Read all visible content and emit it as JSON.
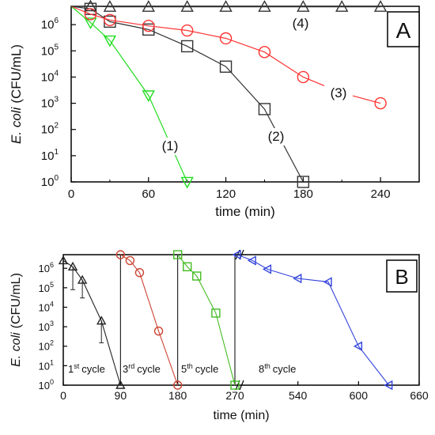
{
  "chart_data": [
    {
      "panel": "A",
      "type": "line",
      "ylabel_italic": "E. coli",
      "ylabel_unit": "(CFU/mL)",
      "xlabel": "time (min)",
      "xlim": [
        0,
        270
      ],
      "ylim": [
        1,
        5000000
      ],
      "yscale": "log",
      "xticks": [
        0,
        60,
        120,
        180,
        240
      ],
      "yticks": [
        {
          "value": 1,
          "base": "10",
          "exp": "0"
        },
        {
          "value": 10,
          "base": "10",
          "exp": "1"
        },
        {
          "value": 100,
          "base": "10",
          "exp": "2"
        },
        {
          "value": 1000,
          "base": "10",
          "exp": "3"
        },
        {
          "value": 10000,
          "base": "10",
          "exp": "4"
        },
        {
          "value": 100000,
          "base": "10",
          "exp": "5"
        },
        {
          "value": 1000000,
          "base": "10",
          "exp": "6"
        }
      ],
      "series": [
        {
          "name": "(1)",
          "color": "#22dd22",
          "marker": "triangle-down",
          "x": [
            0,
            15,
            30,
            60,
            90
          ],
          "y": [
            5000000,
            1200000,
            250000,
            2000,
            1
          ]
        },
        {
          "name": "(2)",
          "color": "#333333",
          "marker": "square",
          "x": [
            0,
            15,
            30,
            60,
            90,
            120,
            150,
            180
          ],
          "y": [
            5000000,
            4000000,
            1300000,
            650000,
            150000,
            25000,
            600,
            1
          ]
        },
        {
          "name": "(3)",
          "color": "#ff3333",
          "marker": "circle",
          "x": [
            0,
            15,
            30,
            60,
            90,
            120,
            150,
            180,
            210,
            240
          ],
          "y": [
            5000000,
            2500000,
            1500000,
            900000,
            600000,
            300000,
            90000,
            10000,
            2500,
            1000
          ]
        },
        {
          "name": "(4)",
          "color": "#333333",
          "marker": "triangle-up",
          "x": [
            0,
            15,
            30,
            60,
            90,
            120,
            150,
            180,
            210,
            240
          ],
          "y": [
            5000000,
            5000000,
            4800000,
            4800000,
            4800000,
            4800000,
            4800000,
            4800000,
            4800000,
            4800000
          ]
        }
      ]
    },
    {
      "panel": "B",
      "type": "line",
      "ylabel_italic": "E. coli",
      "ylabel_unit": "(CFU/mL)",
      "xlabel": "time (min)",
      "ylim": [
        1,
        5000000
      ],
      "yscale": "log",
      "xticks": [
        "0",
        "90",
        "180",
        "270",
        "540",
        "600",
        "660"
      ],
      "yticks": [
        {
          "value": 1,
          "base": "10",
          "exp": "0"
        },
        {
          "value": 10,
          "base": "10",
          "exp": "1"
        },
        {
          "value": 100,
          "base": "10",
          "exp": "2"
        },
        {
          "value": 1000,
          "base": "10",
          "exp": "3"
        },
        {
          "value": 10000,
          "base": "10",
          "exp": "4"
        },
        {
          "value": 100000,
          "base": "10",
          "exp": "5"
        },
        {
          "value": 1000000,
          "base": "10",
          "exp": "6"
        }
      ],
      "axis_break_after": 270,
      "cycles": [
        {
          "num": "1",
          "sup": "st",
          "word": "cycle"
        },
        {
          "num": "3",
          "sup": "rd",
          "word": "cycle"
        },
        {
          "num": "5",
          "sup": "th",
          "word": "cycle"
        },
        {
          "num": "8",
          "sup": "th",
          "word": "cycle"
        }
      ],
      "series": [
        {
          "name": "1st cycle",
          "color": "#222222",
          "marker": "triangle-up",
          "x": [
            0,
            15,
            30,
            60,
            90
          ],
          "y": [
            2500000,
            1200000,
            250000,
            2000,
            1
          ]
        },
        {
          "name": "3rd cycle",
          "color": "#cc4433",
          "marker": "circle",
          "x": [
            90,
            105,
            120,
            150,
            180
          ],
          "y": [
            5000000,
            2500000,
            600000,
            600,
            1
          ]
        },
        {
          "name": "5th cycle",
          "color": "#44bb22",
          "marker": "square",
          "x": [
            180,
            195,
            210,
            240,
            270
          ],
          "y": [
            5000000,
            1200000,
            400000,
            5000,
            1
          ]
        },
        {
          "name": "8th cycle",
          "color": "#3344dd",
          "marker": "triangle-left",
          "x": [
            480,
            495,
            510,
            540,
            570,
            600,
            630
          ],
          "y": [
            5000000,
            2500000,
            900000,
            300000,
            200000,
            100,
            1
          ]
        }
      ]
    }
  ],
  "panel_labels": {
    "a": "A",
    "b": "B"
  },
  "curve_labels": {
    "s1": "(1)",
    "s2": "(2)",
    "s3": "(3)",
    "s4": "(4)"
  }
}
